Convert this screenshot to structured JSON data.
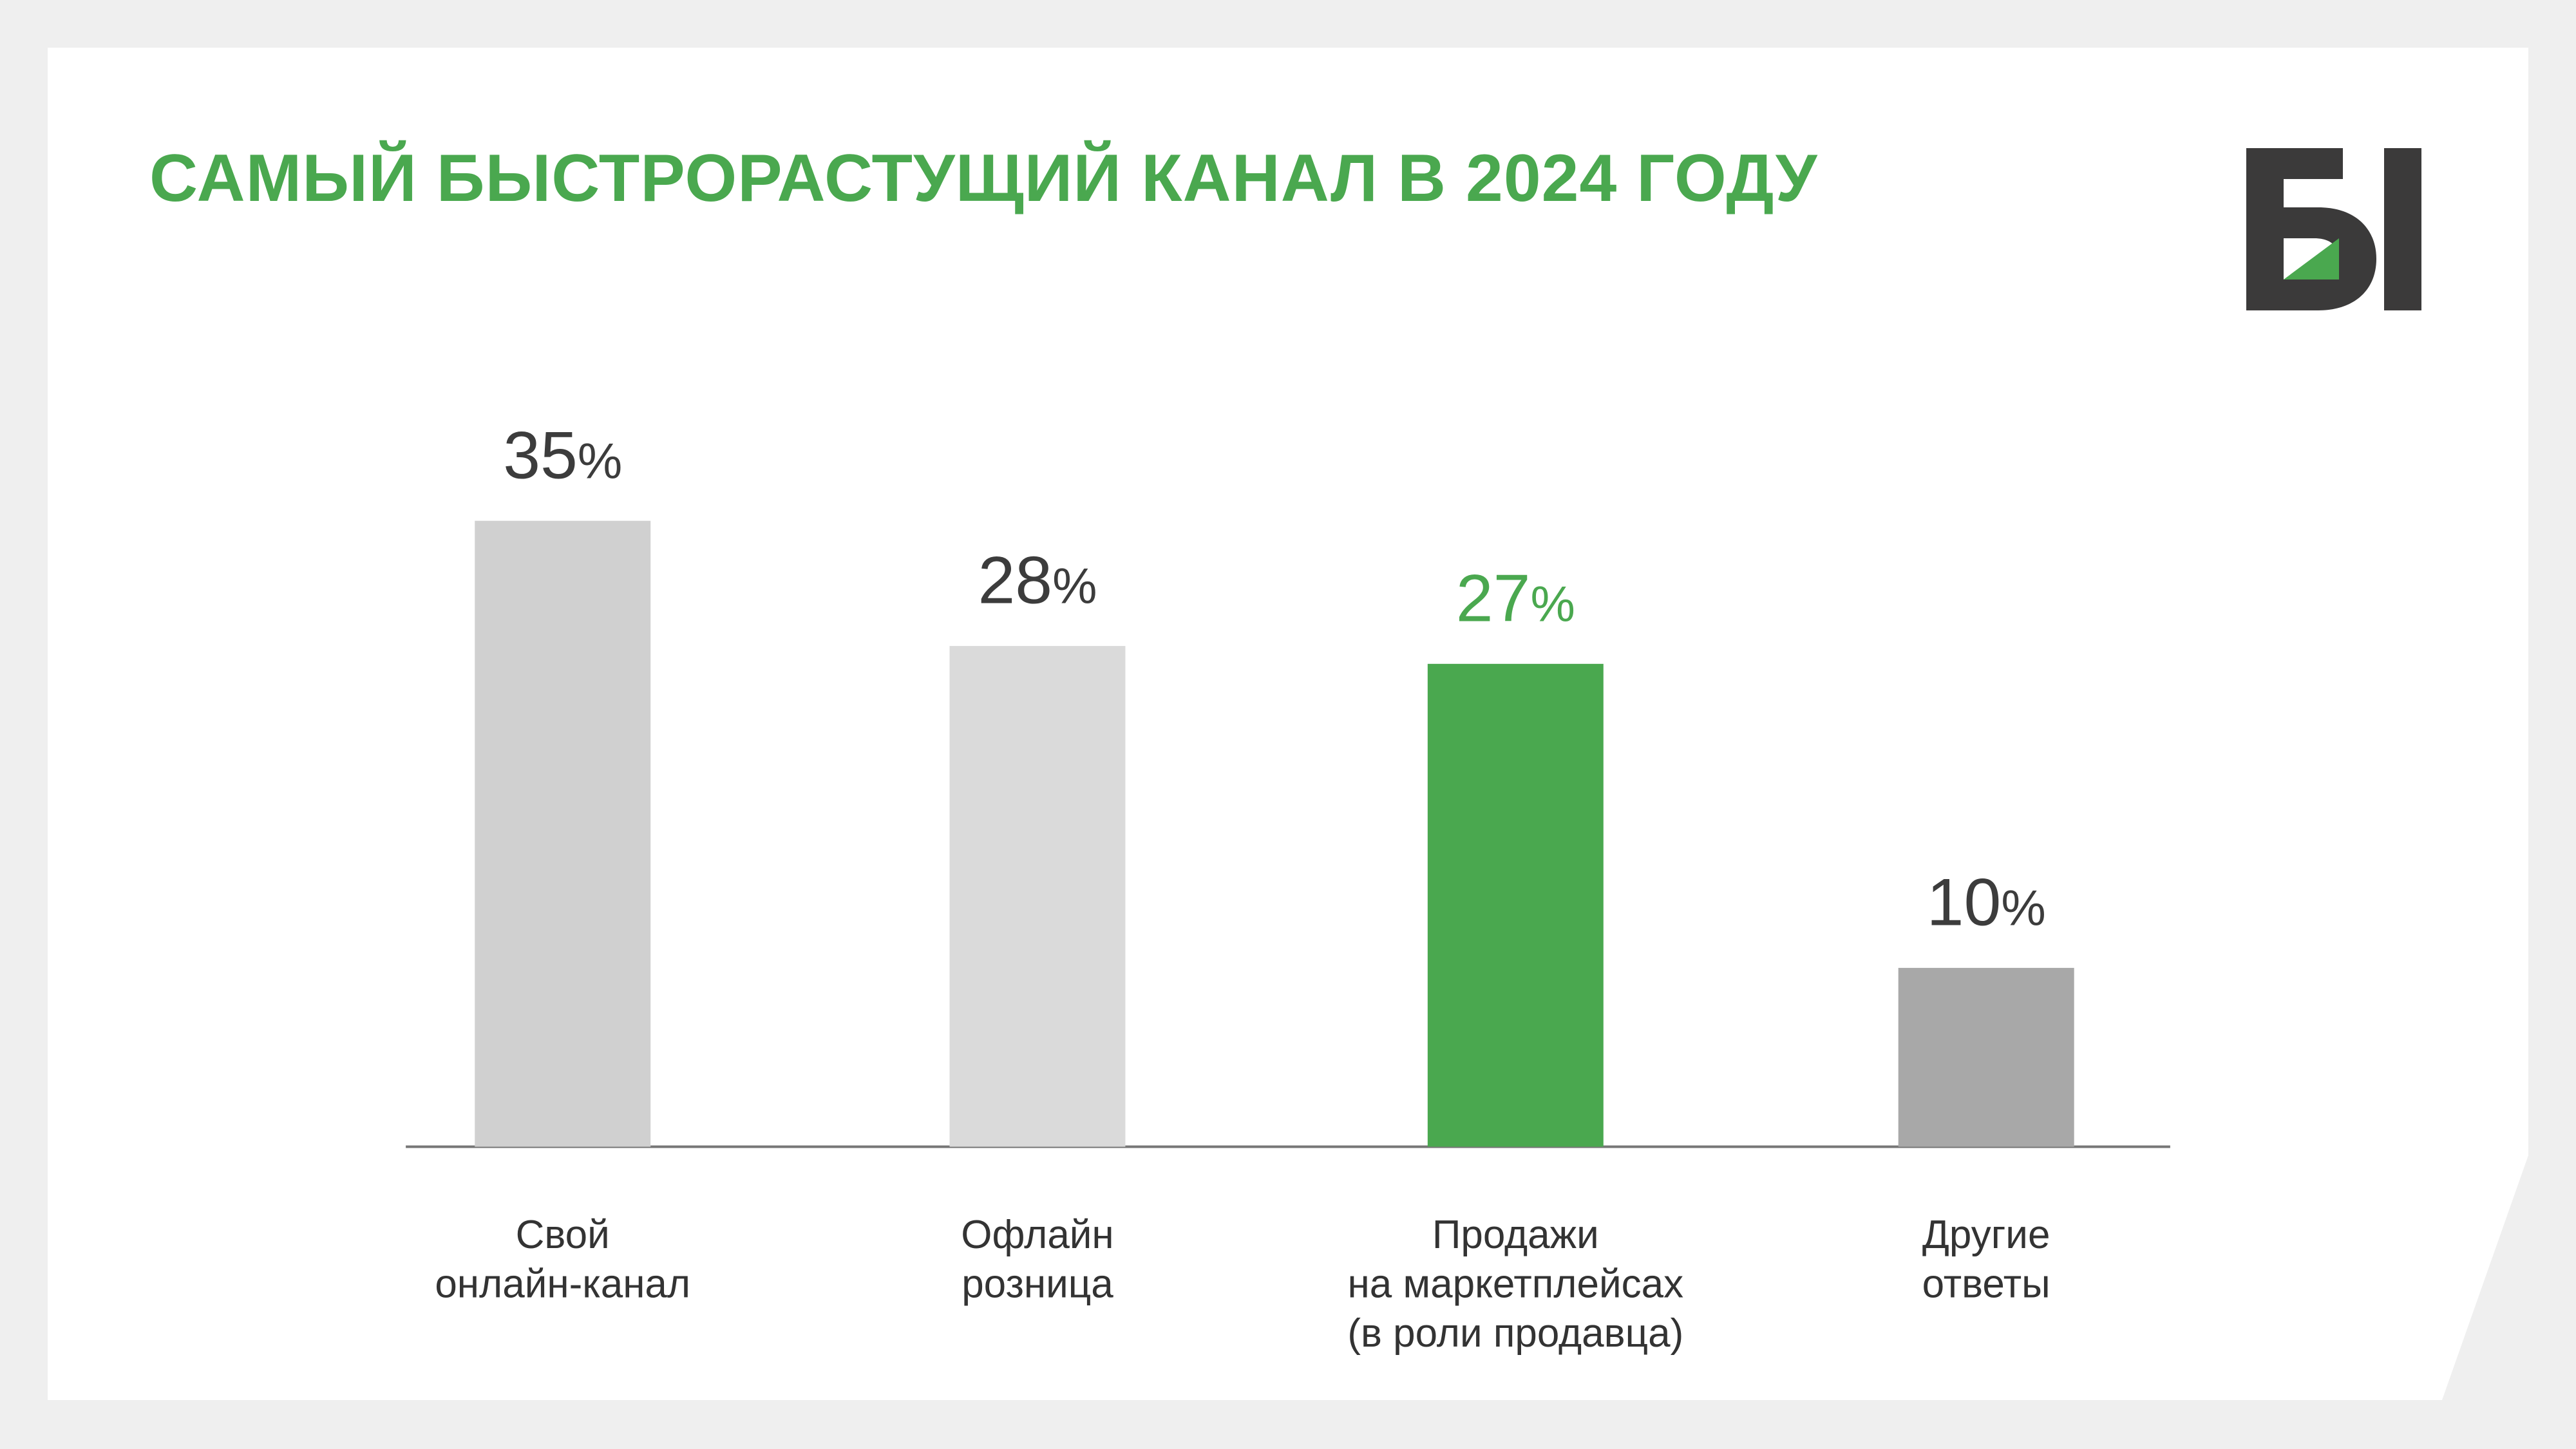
{
  "title": "САМЫЙ БЫСТРОРАСТУЩИЙ КАНАЛ В 2024 ГОДУ",
  "colors": {
    "accent": "#4aa84f",
    "text_dark": "#3c3c3c",
    "label_text": "#333333",
    "background": "#efefef",
    "logo_dark": "#3b3a3a"
  },
  "logo": {
    "text": "Б1"
  },
  "chart_data": {
    "type": "bar",
    "categories": [
      [
        "Свой",
        "онлайн-канал"
      ],
      [
        "Офлайн",
        "розница"
      ],
      [
        "Продажи",
        "на маркетплейсах",
        "(в роли продавца)"
      ],
      [
        "Другие",
        "ответы"
      ]
    ],
    "values": [
      35,
      28,
      27,
      10
    ],
    "value_suffix": "%",
    "bar_colors": [
      "#d0d0d0",
      "#dadada",
      "#4aa84f",
      "#a8a8a8"
    ],
    "label_colors": [
      "#3c3c3c",
      "#3c3c3c",
      "#4aa84f",
      "#3c3c3c"
    ],
    "highlight_index": 2,
    "ylim": [
      0,
      35
    ],
    "grid": false,
    "legend": "none"
  }
}
